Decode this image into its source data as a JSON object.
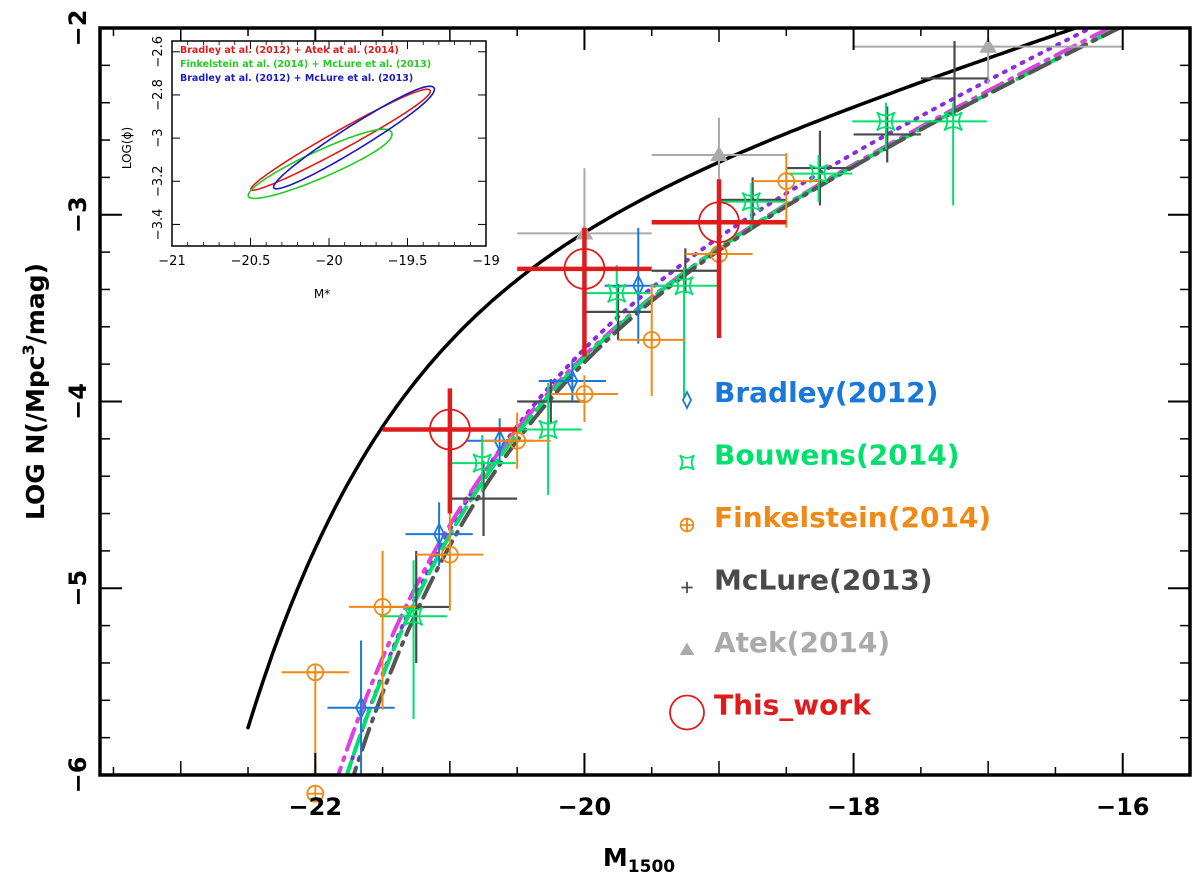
{
  "chart_data": {
    "type": "scatter",
    "xlabel": "M",
    "xlabel_sub": "1500",
    "ylabel": "LOG N(/Mpc^3/mag)",
    "ylabel_parts": [
      "LOG N(/Mpc",
      "3",
      "/mag)"
    ],
    "xlim": [
      -23.6,
      -15.5
    ],
    "ylim": [
      -6,
      -2
    ],
    "xticks": [
      -22,
      -20,
      -18,
      -16
    ],
    "xtick_labels": [
      "−22",
      "−20",
      "−18",
      "−16"
    ],
    "yticks": [
      -6,
      -5,
      -4,
      -3,
      -2
    ],
    "ytick_labels": [
      "−6",
      "−5",
      "−4",
      "−3",
      "−2"
    ],
    "grid": false,
    "legend_position": "center-right",
    "series": [
      {
        "name": "Bradley(2012)",
        "marker": "diamond",
        "color": "#1a78d8",
        "points": [
          {
            "x": -21.66,
            "y": -5.64,
            "xerr": 0.25,
            "yup": 0.36,
            "ylo": 0.36
          },
          {
            "x": -21.08,
            "y": -4.71,
            "xerr": 0.25,
            "yup": 0.17,
            "ylo": 0.17
          },
          {
            "x": -20.63,
            "y": -4.21,
            "xerr": 0.25,
            "yup": 0.12,
            "ylo": 0.12
          },
          {
            "x": -20.09,
            "y": -3.89,
            "xerr": 0.25,
            "yup": 0.11,
            "ylo": 0.11
          },
          {
            "x": -19.6,
            "y": -3.38,
            "xerr": 0.25,
            "yup": 0.31,
            "ylo": 0.31
          }
        ]
      },
      {
        "name": "Bouwens(2014)",
        "marker": "square-star",
        "color": "#00e06c",
        "points": [
          {
            "x": -21.27,
            "y": -5.15,
            "xerr": 0.25,
            "yup": 0.3,
            "ylo": 0.55
          },
          {
            "x": -20.76,
            "y": -4.33,
            "xerr": 0.25,
            "yup": 0.15,
            "ylo": 0.15
          },
          {
            "x": -20.27,
            "y": -4.15,
            "xerr": 0.25,
            "yup": 0.25,
            "ylo": 0.35
          },
          {
            "x": -19.76,
            "y": -3.42,
            "xerr": 0.25,
            "yup": 0.15,
            "ylo": 0.15
          },
          {
            "x": -19.26,
            "y": -3.38,
            "xerr": 0.25,
            "yup": 0.1,
            "ylo": 0.6
          },
          {
            "x": -18.76,
            "y": -2.93,
            "xerr": 0.25,
            "yup": 0.1,
            "ylo": 0.15
          },
          {
            "x": -18.26,
            "y": -2.78,
            "xerr": 0.25,
            "yup": 0.1,
            "ylo": 0.15
          },
          {
            "x": -17.76,
            "y": -2.5,
            "xerr": 0.25,
            "yup": 0.1,
            "ylo": 0.15
          },
          {
            "x": -17.26,
            "y": -2.5,
            "xerr": 0.25,
            "yup": 0.1,
            "ylo": 0.45
          }
        ]
      },
      {
        "name": "Finkelstein(2014)",
        "marker": "circle-plus",
        "color": "#f08a17",
        "points": [
          {
            "x": -22.0,
            "y": -6.1,
            "xerr": 0.0,
            "yup": 0.15,
            "ylo": 0.0
          },
          {
            "x": -22.0,
            "y": -5.45,
            "xerr": 0.25,
            "yup": 0.0,
            "ylo": 0.55
          },
          {
            "x": -21.5,
            "y": -5.1,
            "xerr": 0.25,
            "yup": 0.3,
            "ylo": 0.55
          },
          {
            "x": -21.0,
            "y": -4.82,
            "xerr": 0.25,
            "yup": 0.25,
            "ylo": 0.3
          },
          {
            "x": -20.5,
            "y": -4.21,
            "xerr": 0.25,
            "yup": 0.15,
            "ylo": 0.15
          },
          {
            "x": -20.0,
            "y": -3.96,
            "xerr": 0.25,
            "yup": 0.1,
            "ylo": 0.15
          },
          {
            "x": -19.5,
            "y": -3.67,
            "xerr": 0.25,
            "yup": 0.3,
            "ylo": 0.3
          },
          {
            "x": -19.0,
            "y": -3.21,
            "xerr": 0.25,
            "yup": 0.2,
            "ylo": 0.25
          },
          {
            "x": -18.5,
            "y": -2.82,
            "xerr": 0.25,
            "yup": 0.15,
            "ylo": 0.25
          }
        ]
      },
      {
        "name": "McLure(2013)",
        "marker": "plus",
        "color": "#4a4a4a",
        "points": [
          {
            "x": -21.25,
            "y": -5.1,
            "xerr": 0.25,
            "yup": 0.3,
            "ylo": 0.3
          },
          {
            "x": -20.75,
            "y": -4.52,
            "xerr": 0.25,
            "yup": 0.2,
            "ylo": 0.2
          },
          {
            "x": -20.25,
            "y": -4.0,
            "xerr": 0.25,
            "yup": 0.12,
            "ylo": 0.12
          },
          {
            "x": -19.75,
            "y": -3.52,
            "xerr": 0.25,
            "yup": 0.15,
            "ylo": 0.15
          },
          {
            "x": -19.25,
            "y": -3.3,
            "xerr": 0.25,
            "yup": 0.12,
            "ylo": 0.12
          },
          {
            "x": -18.75,
            "y": -2.92,
            "xerr": 0.25,
            "yup": 0.12,
            "ylo": 0.12
          },
          {
            "x": -18.25,
            "y": -2.75,
            "xerr": 0.25,
            "yup": 0.2,
            "ylo": 0.2
          },
          {
            "x": -17.75,
            "y": -2.57,
            "xerr": 0.25,
            "yup": 0.15,
            "ylo": 0.15
          },
          {
            "x": -17.25,
            "y": -2.27,
            "xerr": 0.25,
            "yup": 0.2,
            "ylo": 0.2
          }
        ]
      },
      {
        "name": "Atek(2014)",
        "marker": "triangle",
        "color": "#aaaaaa",
        "points": [
          {
            "x": -20.0,
            "y": -3.1,
            "xerr": 0.5,
            "yup": 0.35,
            "ylo": 0.35
          },
          {
            "x": -19.0,
            "y": -2.68,
            "xerr": 0.5,
            "yup": 0.2,
            "ylo": 0.25
          },
          {
            "x": -17.0,
            "y": -2.1,
            "xerr": 1.0,
            "yup": 0.1,
            "ylo": 0.2
          }
        ]
      },
      {
        "name": "This_work",
        "marker": "open-circle",
        "color": "#e01b1b",
        "points": [
          {
            "x": -21.0,
            "y": -4.15,
            "xerr": 0.5,
            "yup": 0.22,
            "ylo": 0.45
          },
          {
            "x": -20.0,
            "y": -3.29,
            "xerr": 0.5,
            "yup": 0.22,
            "ylo": 0.47
          },
          {
            "x": -19.0,
            "y": -3.04,
            "xerr": 0.5,
            "yup": 0.23,
            "ylo": 0.62
          }
        ]
      }
    ],
    "curves": [
      {
        "name": "black-solid",
        "color": "#000000",
        "style": "solid",
        "width": 3.5,
        "mstar": -20.7,
        "logphi": -3.0,
        "alpha": -1.6
      },
      {
        "name": "purple-dotted",
        "color": "#8a2be2",
        "style": "dotted",
        "width": 4,
        "mstar": -20.07,
        "logphi": -3.3,
        "alpha": -1.88
      },
      {
        "name": "magenta-dash-dot",
        "color": "#e040e0",
        "style": "dashdot",
        "width": 4,
        "mstar": -20.2,
        "logphi": -3.43,
        "alpha": -1.9
      },
      {
        "name": "green-dashed",
        "color": "#00e06c",
        "style": "dashed",
        "width": 4,
        "mstar": -20.1,
        "logphi": -3.37,
        "alpha": -1.87
      },
      {
        "name": "gray-dash-dot",
        "color": "#555555",
        "style": "dashdot",
        "width": 4,
        "mstar": -20.04,
        "logphi": -3.35,
        "alpha": -1.87
      }
    ],
    "inset": {
      "type": "contour",
      "xlabel": "M*",
      "ylabel": "LOG(ϕ)",
      "xlim": [
        -21,
        -19
      ],
      "ylim": [
        -3.5,
        -2.55
      ],
      "xticks": [
        -21,
        -20.5,
        -20,
        -19.5,
        -19
      ],
      "xtick_labels": [
        "−21",
        "−20.5",
        "−20",
        "−19.5",
        "−19"
      ],
      "yticks": [
        -3.4,
        -3.2,
        -3,
        -2.8,
        -2.6
      ],
      "ytick_labels": [
        "−3.4",
        "−3.2",
        "−3",
        "−2.8",
        "−2.6"
      ],
      "legend": [
        {
          "label": "Bradley at al. (2012) + Atek at al. (2014)",
          "color": "#e01b1b"
        },
        {
          "label": "Finkelstein at al. (2014) + McLure et al. (2013)",
          "color": "#22cc22"
        },
        {
          "label": "Bradley at al. (2012) + McLure et al. (2013)",
          "color": "#1a1ac0"
        }
      ],
      "contours": [
        {
          "name": "red-contour",
          "color": "#e01b1b",
          "cx": -19.88,
          "cy": -2.99,
          "a": 0.705,
          "b": 0.06,
          "angle": 29
        },
        {
          "name": "green-contour",
          "color": "#22cc22",
          "cx": -20.02,
          "cy": -3.11,
          "a": 0.54,
          "b": 0.085,
          "angle": 24
        },
        {
          "name": "blue-contour",
          "color": "#1a1ac0",
          "cx": -19.8,
          "cy": -2.98,
          "a": 0.65,
          "b": 0.075,
          "angle": 32
        }
      ]
    }
  }
}
